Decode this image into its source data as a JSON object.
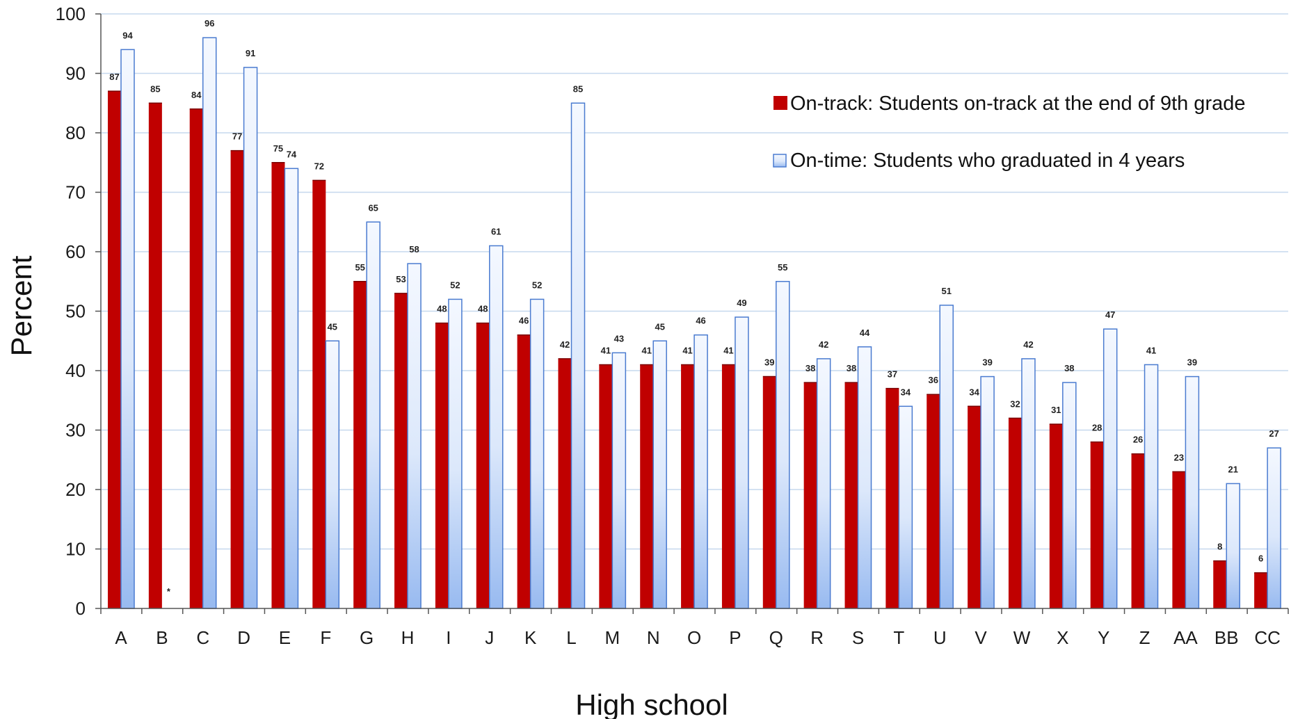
{
  "chart_data": {
    "type": "bar",
    "title": "",
    "xlabel": "High school",
    "ylabel": "Percent",
    "ylim": [
      0,
      100
    ],
    "yticks": [
      0,
      10,
      20,
      30,
      40,
      50,
      60,
      70,
      80,
      90,
      100
    ],
    "grid": true,
    "legend_position": "top-right",
    "categories": [
      "A",
      "B",
      "C",
      "D",
      "E",
      "F",
      "G",
      "H",
      "I",
      "J",
      "K",
      "L",
      "M",
      "N",
      "O",
      "P",
      "Q",
      "R",
      "S",
      "T",
      "U",
      "V",
      "W",
      "X",
      "Y",
      "Z",
      "AA",
      "BB",
      "CC"
    ],
    "series": [
      {
        "name": "On-track: Students on-track at the end of 9th grade",
        "color": "#c00000",
        "values": [
          87,
          85,
          84,
          77,
          75,
          72,
          55,
          53,
          48,
          48,
          46,
          42,
          41,
          41,
          41,
          41,
          39,
          38,
          38,
          37,
          36,
          34,
          32,
          31,
          28,
          26,
          23,
          8,
          6
        ]
      },
      {
        "name": "On-time: Students who graduated in 4 years",
        "color": "#dbe8fb",
        "values": [
          94,
          null,
          96,
          91,
          74,
          45,
          65,
          58,
          52,
          61,
          52,
          85,
          43,
          45,
          46,
          49,
          55,
          42,
          44,
          34,
          51,
          39,
          42,
          38,
          47,
          41,
          39,
          21,
          27
        ]
      }
    ],
    "missing_marker": "*"
  }
}
